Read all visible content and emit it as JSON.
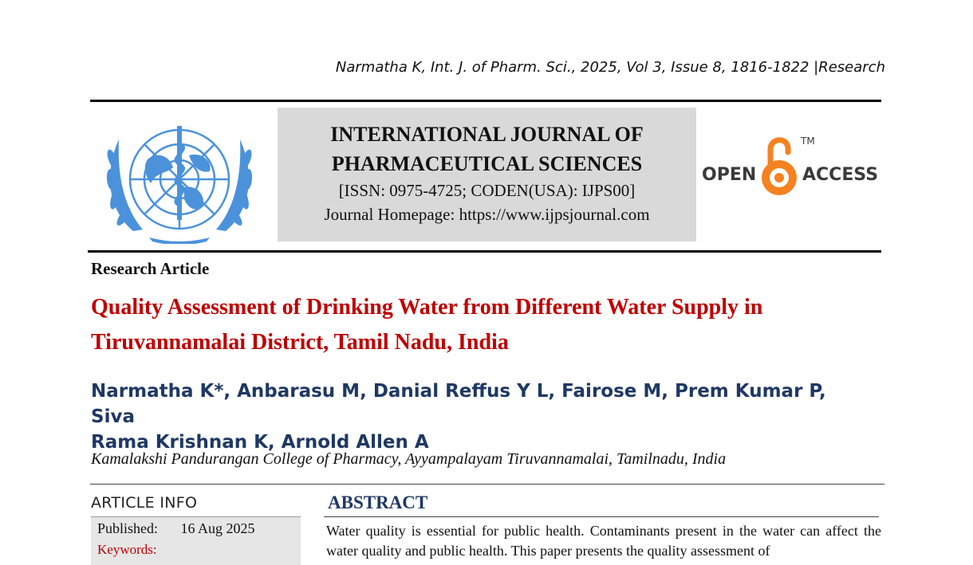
{
  "running_head": "Narmatha K, Int. J. of Pharm. Sci., 2025, Vol 3, Issue 8, 1816-1822 |Research",
  "journal": {
    "title_line1": "INTERNATIONAL JOURNAL OF",
    "title_line2": "PHARMACEUTICAL SCIENCES",
    "issn": "[ISSN: 0975-4725; CODEN(USA): IJPS00]",
    "homepage": "Journal Homepage: https://www.ijpsjournal.com"
  },
  "open_access": {
    "left": "OPEN",
    "right": "ACCESS",
    "tm": "TM"
  },
  "article_type": "Research Article",
  "title_line1": "Quality Assessment of Drinking Water from Different Water Supply in",
  "title_line2": "Tiruvannamalai District, Tamil Nadu, India",
  "authors_line1": "Narmatha K*, Anbarasu M, Danial Reffus Y L, Fairose M, Prem Kumar P, Siva",
  "authors_line2": "Rama Krishnan K, Arnold Allen A",
  "affiliation": "Kamalakshi Pandurangan College of Pharmacy, Ayyampalayam Tiruvannamalai, Tamilnadu, India",
  "article_info": {
    "label": "ARTICLE INFO",
    "published_label": "Published:",
    "published_value": "16 Aug 2025",
    "keywords_label": "Keywords:"
  },
  "abstract": {
    "heading": "ABSTRACT",
    "text": "Water quality is essential for public health. Contaminants present in the water can affect the water quality and public health. This paper presents the quality assessment of"
  },
  "colors": {
    "title_red": "#c00000",
    "author_blue": "#1f3864",
    "oa_orange": "#f58220",
    "logo_blue": "#4b92db"
  }
}
